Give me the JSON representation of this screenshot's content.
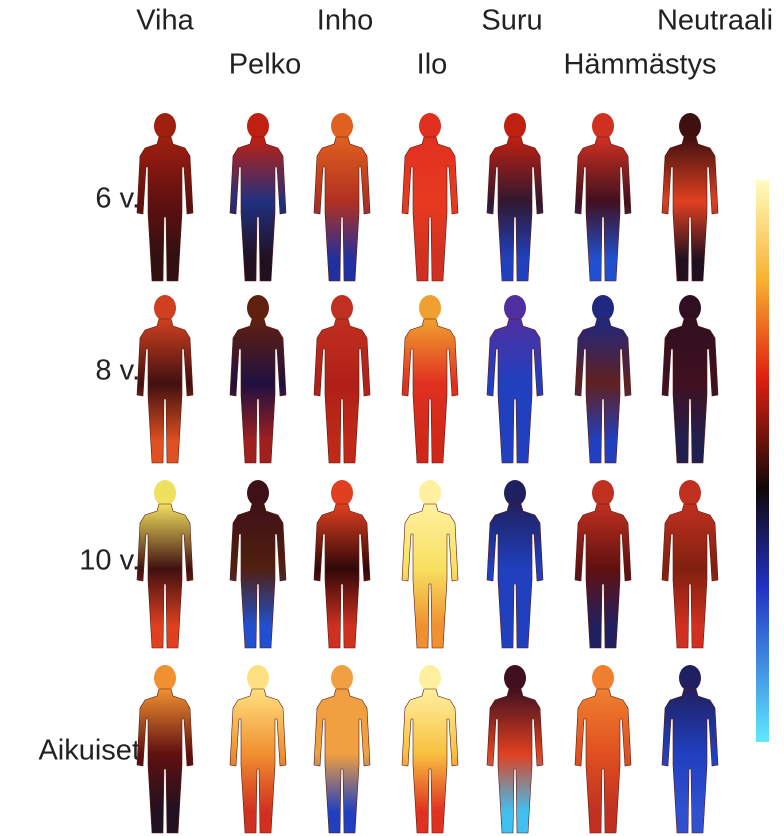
{
  "columns": [
    "Viha",
    "Pelko",
    "Inho",
    "Ilo",
    "Suru",
    "Hämmästys",
    "Neutraali"
  ],
  "rows": [
    "6 v.",
    "8 v.",
    "10 v.",
    "Aikuiset"
  ]
}
